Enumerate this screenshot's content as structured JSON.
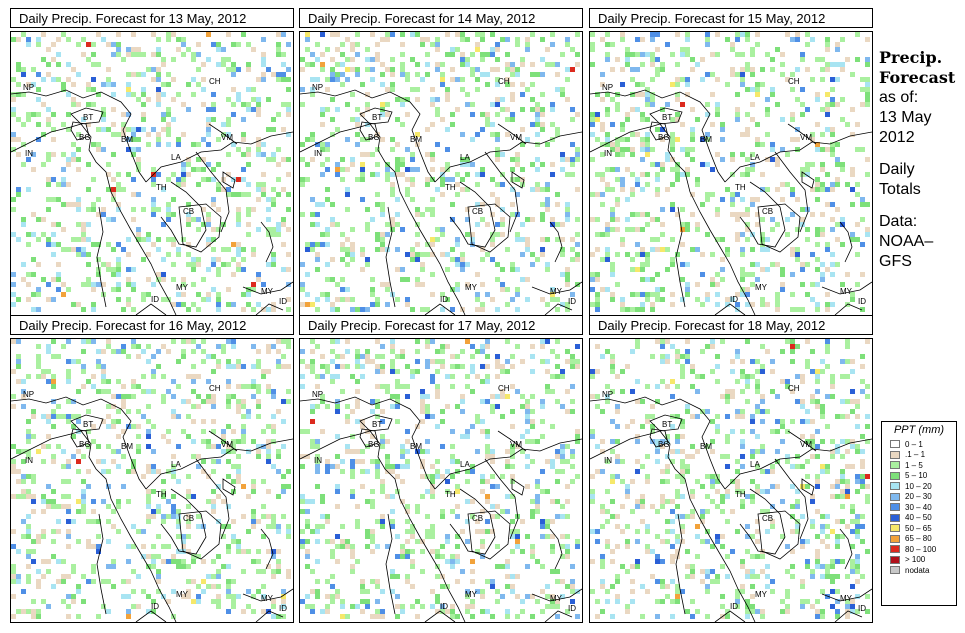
{
  "panels": [
    {
      "title": "Daily Precip. Forecast for  13 May, 2012",
      "seed": 13
    },
    {
      "title": "Daily Precip. Forecast for  14 May, 2012",
      "seed": 14
    },
    {
      "title": "Daily Precip. Forecast for  15 May, 2012",
      "seed": 15
    },
    {
      "title": "Daily Precip. Forecast for  16 May, 2012",
      "seed": 16
    },
    {
      "title": "Daily Precip. Forecast for  17 May, 2012",
      "seed": 17
    },
    {
      "title": "Daily Precip. Forecast for  18 May, 2012",
      "seed": 18
    }
  ],
  "map_labels": [
    "NP",
    "BT",
    "BG",
    "IN",
    "BM",
    "CH",
    "VM",
    "LA",
    "TH",
    "CB",
    "MY",
    "ID",
    "MY",
    "ID"
  ],
  "sidebar": {
    "title_line1": "Precip.",
    "title_line2": "Forecast",
    "asof": "as of:",
    "date_line1": "13 May",
    "date_line2": "2012",
    "daily_line1": "Daily",
    "daily_line2": "Totals",
    "data_line1": "Data:",
    "data_line2": "NOAA–",
    "data_line3": "GFS"
  },
  "legend": {
    "title": "PPT (mm)",
    "items": [
      {
        "label": "0 – 1",
        "color": "#ffffff"
      },
      {
        "label": ".1 – 1",
        "color": "#ead8c2"
      },
      {
        "label": "1 – 5",
        "color": "#aaf0a0"
      },
      {
        "label": "5 – 10",
        "color": "#7ee07a"
      },
      {
        "label": "10 – 20",
        "color": "#a8e4f2"
      },
      {
        "label": "20 – 30",
        "color": "#7fb8ee"
      },
      {
        "label": "30 – 40",
        "color": "#4f8fe6"
      },
      {
        "label": "40 – 50",
        "color": "#2a5fd6"
      },
      {
        "label": "50 – 65",
        "color": "#f6e86a"
      },
      {
        "label": "65 – 80",
        "color": "#f2a23a"
      },
      {
        "label": "80 – 100",
        "color": "#dc2a1e"
      },
      {
        "label": "> 100",
        "color": "#b0101a"
      },
      {
        "label": "nodata",
        "color": "#c8c8c8"
      }
    ]
  }
}
